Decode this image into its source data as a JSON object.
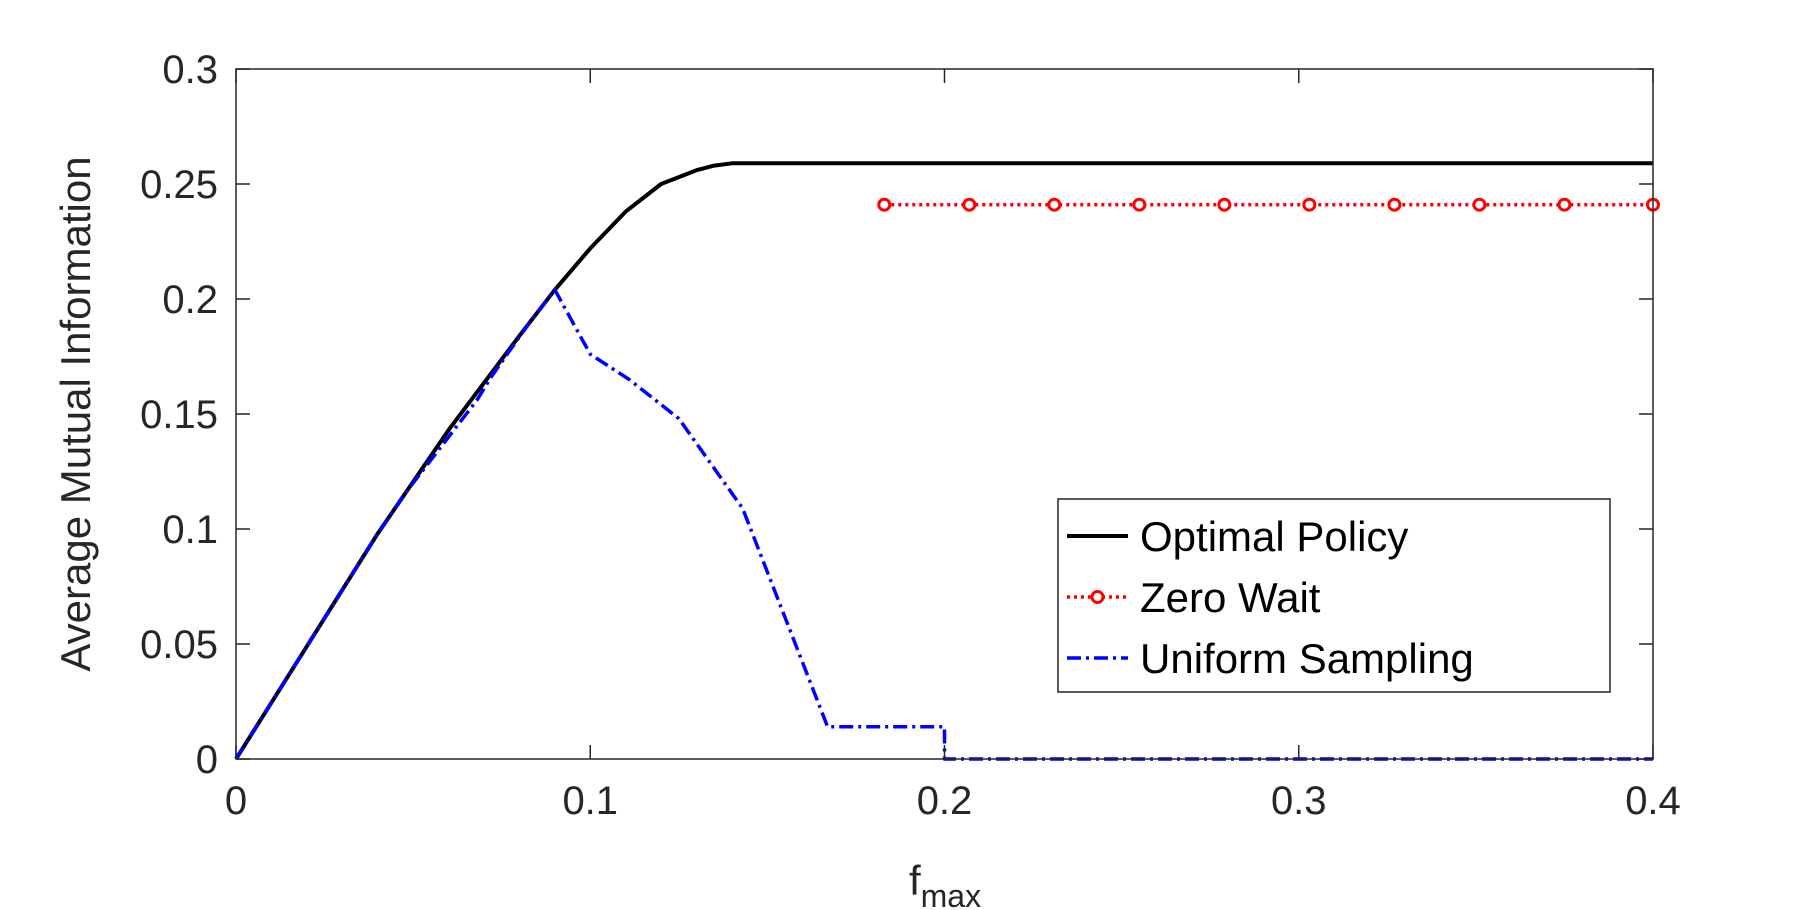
{
  "chart_data": {
    "type": "line",
    "title": "",
    "xlabel": "f",
    "xlabel_sub": "max",
    "ylabel": "Average Mutual Information",
    "xlim": [
      0,
      0.4
    ],
    "ylim": [
      0,
      0.3
    ],
    "xticks": [
      0,
      0.1,
      0.2,
      0.3,
      0.4
    ],
    "xtick_labels": [
      "0",
      "0.1",
      "0.2",
      "0.3",
      "0.4"
    ],
    "yticks": [
      0,
      0.05,
      0.1,
      0.15,
      0.2,
      0.25,
      0.3
    ],
    "ytick_labels": [
      "0",
      "0.05",
      "0.1",
      "0.15",
      "0.2",
      "0.25",
      "0.3"
    ],
    "grid": false,
    "legend_position": "lower-right",
    "series": [
      {
        "name": "Optimal Policy",
        "color": "#000000",
        "style": "solid",
        "marker": "none",
        "x": [
          0,
          0.02,
          0.04,
          0.06,
          0.08,
          0.09,
          0.1,
          0.11,
          0.12,
          0.13,
          0.135,
          0.14,
          0.145,
          0.2,
          0.3,
          0.4
        ],
        "y": [
          0,
          0.049,
          0.098,
          0.143,
          0.184,
          0.204,
          0.222,
          0.238,
          0.25,
          0.256,
          0.258,
          0.259,
          0.259,
          0.259,
          0.259,
          0.259
        ]
      },
      {
        "name": "Zero Wait",
        "color": "#ff0000",
        "style": "dotted",
        "marker": "circle",
        "x": [
          0.183,
          0.207,
          0.231,
          0.255,
          0.279,
          0.303,
          0.327,
          0.351,
          0.375,
          0.4
        ],
        "y": [
          0.241,
          0.241,
          0.241,
          0.241,
          0.241,
          0.241,
          0.241,
          0.241,
          0.241,
          0.241
        ]
      },
      {
        "name": "Uniform Sampling",
        "color": "#0000ff",
        "style": "dashdot",
        "marker": "none",
        "x": [
          0,
          0.04,
          0.04,
          0.044,
          0.044,
          0.048,
          0.048,
          0.052,
          0.052,
          0.056,
          0.056,
          0.06,
          0.06,
          0.064,
          0.064,
          0.068,
          0.068,
          0.072,
          0.072,
          0.077,
          0.077,
          0.083,
          0.083,
          0.09,
          0.09,
          0.1,
          0.1,
          0.111,
          0.111,
          0.125,
          0.125,
          0.143,
          0.143,
          0.167,
          0.167,
          0.2,
          0.2,
          0.4
        ],
        "y": [
          0,
          0.098,
          0.098,
          0.107,
          0.107,
          0.116,
          0.116,
          0.124,
          0.124,
          0.132,
          0.132,
          0.14,
          0.14,
          0.148,
          0.148,
          0.156,
          0.156,
          0.166,
          0.166,
          0.177,
          0.177,
          0.19,
          0.19,
          0.204,
          0.204,
          0.176,
          0.176,
          0.165,
          0.165,
          0.148,
          0.148,
          0.109,
          0.109,
          0.014,
          0.014,
          0.014,
          0,
          0
        ]
      }
    ]
  }
}
